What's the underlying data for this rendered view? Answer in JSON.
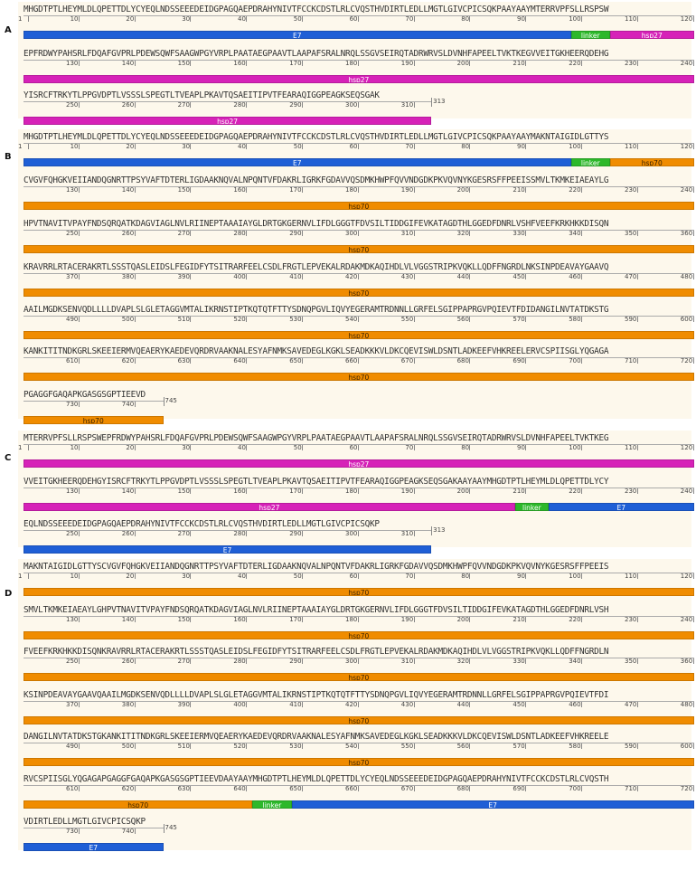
{
  "colors": {
    "E7": "#1f5fd6",
    "linker": "#2db82a",
    "hsp27": "#d622b8",
    "hsp70": "#f08c00",
    "panel_bg": "#fdf8ec"
  },
  "panels": [
    {
      "label": "A",
      "lines": [
        {
          "seq": "MHGDTPTLHEYMLDLQPETTDLYCYEQLNDSSEEEDEIDGPAGQAEPDRAHYNIVTFCCKCDSTLRLCVQSTHVDIRTLEDLLMGTLGIVCPICSQKPAAYAAYMTERRVPFSLLRSPSW",
          "ticks": [
            "1",
            "10",
            "20",
            "30",
            "40",
            "50",
            "60",
            "70",
            "80",
            "90",
            "100",
            "110",
            "120"
          ],
          "end": "",
          "segments": [
            {
              "name": "E7",
              "from": 1,
              "to": 98
            },
            {
              "name": "linker",
              "from": 99,
              "to": 105
            },
            {
              "name": "hsp27",
              "from": 106,
              "to": 120
            }
          ]
        },
        {
          "seq": "EPFRDWYPAHSRLFDQAFGVPRLPDEWSQWFSAAGWPGYVRPLPAATAEGPAAVTLAAPAFSRALNRQLSSGVSEIRQTADRWRVSLDVNHFAPEELTVKTKEGVVEITGKHEERQDEHG",
          "ticks": [
            "130",
            "140",
            "150",
            "160",
            "170",
            "180",
            "190",
            "200",
            "210",
            "220",
            "230",
            "240"
          ],
          "end": "",
          "segments": [
            {
              "name": "hsp27",
              "from": 121,
              "to": 240
            }
          ]
        },
        {
          "seq": "YISRCFTRKYTLPPGVDPTLVSSSLSPEGTLTVEAPLPKAVTQSAEITIPVTFEARAQIGGPEAGKSEQSGAK",
          "ticks": [
            "250",
            "260",
            "270",
            "280",
            "290",
            "300",
            "310"
          ],
          "end": "313",
          "segments": [
            {
              "name": "hsp27",
              "from": 241,
              "to": 313
            }
          ]
        }
      ]
    },
    {
      "label": "B",
      "lines": [
        {
          "seq": "MHGDTPTLHEYMLDLQPETTDLYCYEQLNDSSEEEDEIDGPAGQAEPDRAHYNIVTFCCKCDSTLRLCVQSTHVDIRTLEDLLMGTLGIVCPICSQKPAAYAAYMAKNTAIGIDLGTTYS",
          "ticks": [
            "1",
            "10",
            "20",
            "30",
            "40",
            "50",
            "60",
            "70",
            "80",
            "90",
            "100",
            "110",
            "120"
          ],
          "end": "",
          "segments": [
            {
              "name": "E7",
              "from": 1,
              "to": 98
            },
            {
              "name": "linker",
              "from": 99,
              "to": 105
            },
            {
              "name": "hsp70",
              "from": 106,
              "to": 120
            }
          ]
        },
        {
          "seq": "CVGVFQHGKVEIIANDQGNRTTPSYVAFTDTERLIGDAAKNQVALNPQNTVFDAKRLIGRKFGDAVVQSDMKHWPFQVVNDGDKPKVQVNYKGESRSFFPEEISSMVLTKMKEIAEAYLG",
          "ticks": [
            "130",
            "140",
            "150",
            "160",
            "170",
            "180",
            "190",
            "200",
            "210",
            "220",
            "230",
            "240"
          ],
          "end": "",
          "segments": [
            {
              "name": "hsp70",
              "from": 121,
              "to": 240
            }
          ]
        },
        {
          "seq": "HPVTNAVITVPAYFNDSQRQATKDAGVIAGLNVLRIINEPTAAAIAYGLDRTGKGERNVLIFDLGGGTFDVSILTIDDGIFEVKATAGDTHLGGEDFDNRLVSHFVEEFKRKHKKDISQN",
          "ticks": [
            "250",
            "260",
            "270",
            "280",
            "290",
            "300",
            "310",
            "320",
            "330",
            "340",
            "350",
            "360"
          ],
          "end": "",
          "segments": [
            {
              "name": "hsp70",
              "from": 241,
              "to": 360
            }
          ]
        },
        {
          "seq": "KRAVRRLRTACERAKRTLSSSTQASLEIDSLFEGIDFYTSITRARFEELCSDLFRGTLEPVEKALRDAKMDKAQIHDLVLVGGSTRIPKVQKLLQDFFNGRDLNKSINPDEAVAYGAAVQ",
          "ticks": [
            "370",
            "380",
            "390",
            "400",
            "410",
            "420",
            "430",
            "440",
            "450",
            "460",
            "470",
            "480"
          ],
          "end": "",
          "segments": [
            {
              "name": "hsp70",
              "from": 361,
              "to": 480
            }
          ]
        },
        {
          "seq": "AAILMGDKSENVQDLLLLDVAPLSLGLETAGGVMTALIKRNSTIPTKQTQTFTTYSDNQPGVLIQVYEGERAMTRDNNLLGRFELSGIPPAPRGVPQIEVTFDIDANGILNVTATDKSTG",
          "ticks": [
            "490",
            "500",
            "510",
            "520",
            "530",
            "540",
            "550",
            "560",
            "570",
            "580",
            "590",
            "600"
          ],
          "end": "",
          "segments": [
            {
              "name": "hsp70",
              "from": 481,
              "to": 600
            }
          ]
        },
        {
          "seq": "KANKITITNDKGRLSKEEIERMVQEAERYKAEDEVQRDRVAAKNALESYAFNMKSAVEDEGLKGKLSEADKKKVLDKCQEVISWLDSNTLADKEEFVHKREELERVCSPIISGLYQGAGA",
          "ticks": [
            "610",
            "620",
            "630",
            "640",
            "650",
            "660",
            "670",
            "680",
            "690",
            "700",
            "710",
            "720"
          ],
          "end": "",
          "segments": [
            {
              "name": "hsp70",
              "from": 601,
              "to": 720
            }
          ]
        },
        {
          "seq": "PGAGGFGAQAPKGASGSGPTIEEVD",
          "ticks": [
            "730",
            "740"
          ],
          "end": "745",
          "segments": [
            {
              "name": "hsp70",
              "from": 721,
              "to": 745
            }
          ]
        }
      ]
    },
    {
      "label": "C",
      "lines": [
        {
          "seq": "MTERRVPFSLLRSPSWEPFRDWYPAHSRLFDQAFGVPRLPDEWSQWFSAAGWPGYVRPLPAATAEGPAAVTLAAPAFSRALNRQLSSGVSEIRQTADRWRVSLDVNHFAPEELTVKTKEG",
          "ticks": [
            "1",
            "10",
            "20",
            "30",
            "40",
            "50",
            "60",
            "70",
            "80",
            "90",
            "100",
            "110",
            "120"
          ],
          "end": "",
          "segments": [
            {
              "name": "hsp27",
              "from": 1,
              "to": 120
            }
          ]
        },
        {
          "seq": "VVEITGKHEERQDEHGYISRCFTRKYTLPPGVDPTLVSSSLSPEGTLTVEAPLPKAVTQSAEITIPVTFEARAQIGGPEAGKSEQSGAKAAYAAYMHGDTPTLHEYMLDLQPETTDLYCY",
          "ticks": [
            "130",
            "140",
            "150",
            "160",
            "170",
            "180",
            "190",
            "200",
            "210",
            "220",
            "230",
            "240"
          ],
          "end": "",
          "segments": [
            {
              "name": "hsp27",
              "from": 121,
              "to": 208
            },
            {
              "name": "linker",
              "from": 209,
              "to": 214
            },
            {
              "name": "E7",
              "from": 215,
              "to": 240
            }
          ]
        },
        {
          "seq": "EQLNDSSEEEDEIDGPAGQAEPDRAHYNIVTFCCKCDSTLRLCVQSTHVDIRTLEDLLMGTLGIVCPICSQKP",
          "ticks": [
            "250",
            "260",
            "270",
            "280",
            "290",
            "300",
            "310"
          ],
          "end": "313",
          "segments": [
            {
              "name": "E7",
              "from": 241,
              "to": 313
            }
          ]
        }
      ]
    },
    {
      "label": "D",
      "lines": [
        {
          "seq": "MAKNTAIGIDLGTTYSCVGVFQHGKVEIIANDQGNRTTPSYVAFTDTERLIGDAAKNQVALNPQNTVFDAKRLIGRKFGDAVVQSDMKHWPFQVVNDGDKPKVQVNYKGESRSFFPEEIS",
          "ticks": [
            "1",
            "10",
            "20",
            "30",
            "40",
            "50",
            "60",
            "70",
            "80",
            "90",
            "100",
            "110",
            "120"
          ],
          "end": "",
          "segments": [
            {
              "name": "hsp70",
              "from": 1,
              "to": 120
            }
          ]
        },
        {
          "seq": "SMVLTKMKEIAEAYLGHPVTNAVITVPAYFNDSQRQATKDAGVIAGLNVLRIINEPTAAAIAYGLDRTGKGERNVLIFDLGGGTFDVSILTIDDGIFEVKATAGDTHLGGEDFDNRLVSH",
          "ticks": [
            "130",
            "140",
            "150",
            "160",
            "170",
            "180",
            "190",
            "200",
            "210",
            "220",
            "230",
            "240"
          ],
          "end": "",
          "segments": [
            {
              "name": "hsp70",
              "from": 121,
              "to": 240
            }
          ]
        },
        {
          "seq": "FVEEFKRKHKKDISQNKRAVRRLRTACERAKRTLSSSTQASLEIDSLFEGIDFYTSITRARFEELCSDLFRGTLEPVEKALRDAKMDKAQIHDLVLVGGSTRIPKVQKLLQDFFNGRDLN",
          "ticks": [
            "250",
            "260",
            "270",
            "280",
            "290",
            "300",
            "310",
            "320",
            "330",
            "340",
            "350",
            "360"
          ],
          "end": "",
          "segments": [
            {
              "name": "hsp70",
              "from": 241,
              "to": 360
            }
          ]
        },
        {
          "seq": "KSINPDEAVAYGAAVQAAILMGDKSENVQDLLLLDVAPLSLGLETAGGVMTALIKRNSTIPTKQTQTFTTYSDNQPGVLIQVYEGERAMTRDNNLLGRFELSGIPPAPRGVPQIEVTFDI",
          "ticks": [
            "370",
            "380",
            "390",
            "400",
            "410",
            "420",
            "430",
            "440",
            "450",
            "460",
            "470",
            "480"
          ],
          "end": "",
          "segments": [
            {
              "name": "hsp70",
              "from": 361,
              "to": 480
            }
          ]
        },
        {
          "seq": "DANGILNVTATDKSTGKANKITITNDKGRLSKEEIERMVQEAERYKAEDEVQRDRVAAKNALESYAFNMKSAVEDEGLKGKLSEADKKKVLDKCQEVISWLDSNTLADKEEFVHKREELE",
          "ticks": [
            "490",
            "500",
            "510",
            "520",
            "530",
            "540",
            "550",
            "560",
            "570",
            "580",
            "590",
            "600"
          ],
          "end": "",
          "segments": [
            {
              "name": "hsp70",
              "from": 481,
              "to": 600
            }
          ]
        },
        {
          "seq": "RVCSPIISGLYQGAGAPGAGGFGAQAPKGASGSGPTIEEVDAAYAAYMHGDTPTLHEYMLDLQPETTDLYCYEQLNDSSEEEDEIDGPAGQAEPDRAHYNIVTFCCKCDSTLRLCVQSTH",
          "ticks": [
            "610",
            "620",
            "630",
            "640",
            "650",
            "660",
            "670",
            "680",
            "690",
            "700",
            "710",
            "720"
          ],
          "end": "",
          "segments": [
            {
              "name": "hsp70",
              "from": 601,
              "to": 641
            },
            {
              "name": "linker",
              "from": 642,
              "to": 648
            },
            {
              "name": "E7",
              "from": 649,
              "to": 720
            }
          ]
        },
        {
          "seq": "VDIRTLEDLLMGTLGIVCPICSQKP",
          "ticks": [
            "730",
            "740"
          ],
          "end": "745",
          "segments": [
            {
              "name": "E7",
              "from": 721,
              "to": 745
            }
          ]
        }
      ]
    }
  ]
}
